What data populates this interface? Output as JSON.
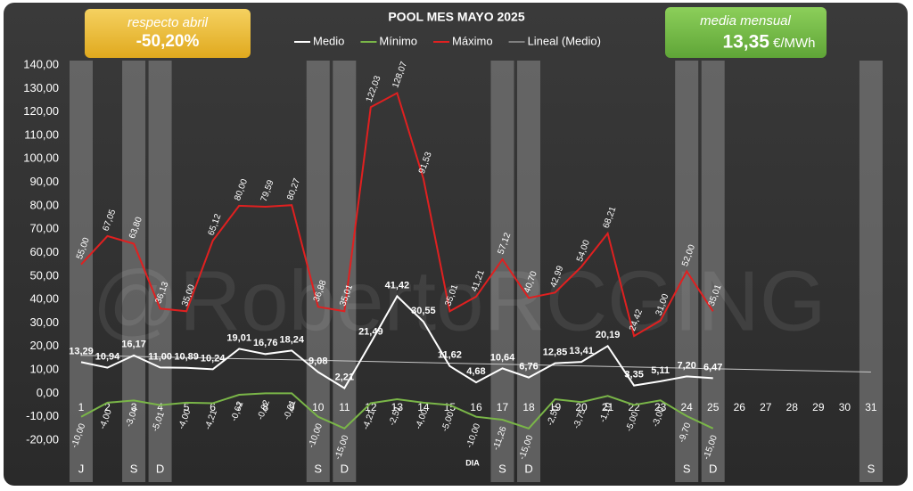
{
  "chart_data": {
    "type": "line",
    "title": "POOL  MES MAYO 2025",
    "x_label": "DIA",
    "watermark": "@RobertoRCGING",
    "annotations": {
      "left": {
        "title": "respecto abril",
        "value": "-50,20%"
      },
      "right": {
        "title": "media mensual",
        "value": "13,35",
        "unit": "€/MWh"
      }
    },
    "categories": [
      "1",
      "2",
      "3",
      "4",
      "5",
      "6",
      "7",
      "8",
      "9",
      "10",
      "11",
      "12",
      "13",
      "14",
      "15",
      "16",
      "17",
      "18",
      "19",
      "20",
      "21",
      "22",
      "23",
      "24",
      "25",
      "26",
      "27",
      "28",
      "29",
      "30",
      "31"
    ],
    "weekday_labels": [
      "J",
      null,
      "S",
      "D",
      null,
      null,
      null,
      null,
      null,
      "S",
      "D",
      null,
      null,
      null,
      null,
      null,
      "S",
      "D",
      null,
      null,
      null,
      null,
      null,
      "S",
      "D",
      null,
      null,
      null,
      null,
      null,
      "S"
    ],
    "series": [
      {
        "name": "Medio",
        "color": "#ffffff",
        "values": [
          13.29,
          10.94,
          16.17,
          11.0,
          10.89,
          10.24,
          19.01,
          16.76,
          18.24,
          9.08,
          2.21,
          21.49,
          41.42,
          30.55,
          11.62,
          4.68,
          10.64,
          6.76,
          12.85,
          13.41,
          20.19,
          3.35,
          5.11,
          7.2,
          6.47,
          null,
          null,
          null,
          null,
          null,
          null
        ],
        "value_labels": [
          "13,29",
          "10,94",
          "16,17",
          "11,00",
          "10,89",
          "10,24",
          "19,01",
          "16,76",
          "18,24",
          "9,08",
          "2,21",
          "21,49",
          "41,42",
          "30,55",
          "11,62",
          "4,68",
          "10,64",
          "6,76",
          "12,85",
          "13,41",
          "20,19",
          "3,35",
          "5,11",
          "7,20",
          "6,47",
          null,
          null,
          null,
          null,
          null,
          null
        ]
      },
      {
        "name": "Mínimo",
        "color": "#7ab648",
        "values": [
          -10.0,
          -4.0,
          -3.04,
          -5.01,
          -4.0,
          -4.21,
          -0.62,
          -0.02,
          -0.01,
          -10.0,
          -15.0,
          -4.21,
          -2.51,
          -4.0,
          -5.0,
          -10.0,
          -11.26,
          -15.0,
          -2.5,
          -3.75,
          -1.1,
          -5.0,
          -3.0,
          -9.7,
          -15.0,
          null,
          null,
          null,
          null,
          null,
          null
        ],
        "value_labels": [
          "-10,00",
          "-4,00",
          "-3,04",
          "-5,01",
          "-4,00",
          "-4,21",
          "-0,62",
          "-0,02",
          "-0,01",
          "-10,00",
          "-15,00",
          "-4,21",
          "-2,51",
          "-4,00",
          "-5,00",
          "-10,00",
          "-11,26",
          "-15,00",
          "-2,50",
          "-3,75",
          "-1,10",
          "-5,00",
          "-3,00",
          "-9,70",
          "-15,00",
          null,
          null,
          null,
          null,
          null,
          null
        ]
      },
      {
        "name": "Máximo",
        "color": "#e02020",
        "values": [
          55.0,
          67.05,
          63.8,
          36.13,
          35.0,
          65.12,
          80.0,
          79.59,
          80.27,
          36.88,
          35.01,
          122.03,
          128.07,
          91.53,
          35.01,
          41.21,
          57.12,
          40.7,
          42.99,
          54.0,
          68.21,
          24.42,
          31.0,
          52.0,
          35.01,
          null,
          null,
          null,
          null,
          null,
          null
        ],
        "value_labels": [
          "55,00",
          "67,05",
          "63,80",
          "36,13",
          "35,00",
          "65,12",
          "80,00",
          "79,59",
          "80,27",
          "36,88",
          "35,01",
          "122,03",
          "128,07",
          "91,53",
          "35,01",
          "41,21",
          "57,12",
          "40,70",
          "42,99",
          "54,00",
          "68,21",
          "24,42",
          "31,00",
          "52,00",
          "35,01",
          null,
          null,
          null,
          null,
          null,
          null
        ]
      }
    ],
    "trendline": {
      "name": "Lineal (Medio)",
      "color": "#c8c8c8"
    },
    "ylim": [
      -20,
      140
    ],
    "yticks": [
      {
        "value": -20,
        "label": "-20,00"
      },
      {
        "value": -10,
        "label": "-10,00"
      },
      {
        "value": 0,
        "label": "0,00"
      },
      {
        "value": 10,
        "label": "10,00"
      },
      {
        "value": 20,
        "label": "20,00"
      },
      {
        "value": 30,
        "label": "30,00"
      },
      {
        "value": 40,
        "label": "40,00"
      },
      {
        "value": 50,
        "label": "50,00"
      },
      {
        "value": 60,
        "label": "60,00"
      },
      {
        "value": 70,
        "label": "70,00"
      },
      {
        "value": 80,
        "label": "80,00"
      },
      {
        "value": 90,
        "label": "90,00"
      },
      {
        "value": 100,
        "label": "100,00"
      },
      {
        "value": 110,
        "label": "110,00"
      },
      {
        "value": 120,
        "label": "120,00"
      },
      {
        "value": 130,
        "label": "130,00"
      },
      {
        "value": 140,
        "label": "140,00"
      }
    ],
    "grid": false
  }
}
